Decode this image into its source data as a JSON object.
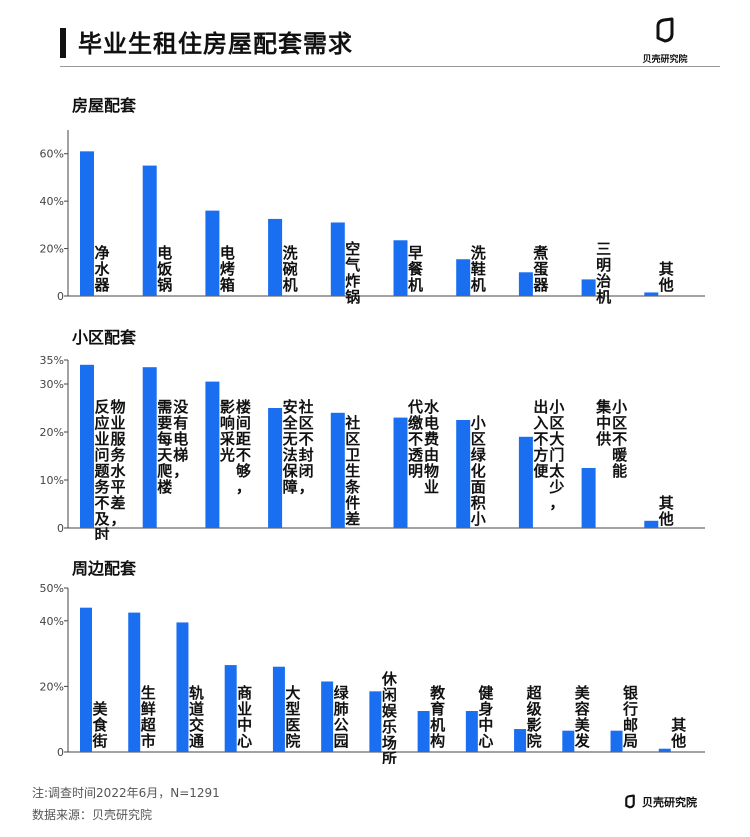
{
  "header": {
    "title": "毕业生租住房屋配套需求",
    "brand": "贝壳研究院"
  },
  "sections": [
    {
      "title": "房屋配套"
    },
    {
      "title": "小区配套"
    },
    {
      "title": "周边配套"
    }
  ],
  "footer": {
    "note": "注:调查时间2022年6月，N=1291",
    "source": "数据来源：贝壳研究院",
    "brand": "贝壳研究院"
  },
  "colors": {
    "bar": "#1a6ff0",
    "axis": "#444444",
    "text": "#111111"
  },
  "chart_data": [
    {
      "type": "bar",
      "title": "房屋配套",
      "categories": [
        "净水器",
        "电饭锅",
        "电烤箱",
        "洗碗机",
        "空气炸锅",
        "早餐机",
        "洗鞋机",
        "煮蛋器",
        "三明治机",
        "其他"
      ],
      "values": [
        61,
        55,
        36,
        32.5,
        31,
        23.5,
        15.5,
        10,
        7,
        1.5
      ],
      "yticks": [
        0,
        20,
        40,
        60
      ],
      "ytick_labels": [
        "0",
        "20%",
        "40%",
        "60%"
      ],
      "ylim": [
        0,
        70
      ],
      "label_columns": [
        [
          "净水器"
        ],
        [
          "电饭锅"
        ],
        [
          "电烤箱"
        ],
        [
          "洗碗机"
        ],
        [
          "空气炸锅"
        ],
        [
          "早餐机"
        ],
        [
          "洗鞋机"
        ],
        [
          "煮蛋器"
        ],
        [
          "三明治机"
        ],
        [
          "其他"
        ]
      ]
    },
    {
      "type": "bar",
      "title": "小区配套",
      "categories": [
        "物业服务水平差，问题不及时解决",
        "没有电梯，需要每天爬楼",
        "楼间距不够，影响采光",
        "社区不封闭，安全无法保障",
        "社区卫生条件差",
        "水电费由物业代缴不透明",
        "小区绿化面积小",
        "小区大门太少，出入不方便",
        "小区不供暖能集中",
        "其他"
      ],
      "values": [
        34,
        33.5,
        30.5,
        25,
        24,
        23,
        22.5,
        19,
        12.5,
        1.5
      ],
      "yticks": [
        0,
        10,
        20,
        30,
        35
      ],
      "ytick_labels": [
        "0",
        "10%",
        "20%",
        "30%",
        "35%"
      ],
      "ylim": [
        0,
        35
      ],
      "label_columns": [
        [
          "物业服务水平差，",
          "反应业问题务不及时解决"
        ],
        [
          "没有电梯，",
          "需要每天爬楼"
        ],
        [
          "楼间距不够，",
          "影响采光"
        ],
        [
          "社区不封闭，",
          "安全无法保障"
        ],
        [
          "社区卫生条件差"
        ],
        [
          "水电费由物业",
          "代缴不透明"
        ],
        [
          "小区绿化面积小"
        ],
        [
          "小区大门太少，",
          "出入不方便"
        ],
        [
          "小区不暖能",
          "集中供"
        ],
        [
          "其他"
        ]
      ]
    },
    {
      "type": "bar",
      "title": "周边配套",
      "categories": [
        "美食街",
        "生鲜超市",
        "轨道交通",
        "商业中心",
        "大型医院",
        "绿肺公园",
        "休闲娱乐场所",
        "教育机构",
        "健身中心",
        "超级影院",
        "美容美发",
        "银行邮局",
        "其他"
      ],
      "values": [
        44,
        42.5,
        39.5,
        26.5,
        26,
        21.5,
        18.5,
        12.5,
        12.5,
        7,
        6.5,
        6.5,
        1
      ],
      "yticks": [
        0,
        20,
        40,
        50
      ],
      "ytick_labels": [
        "0",
        "20%",
        "40%",
        "50%"
      ],
      "ylim": [
        0,
        50
      ],
      "label_columns": [
        [
          "美食街"
        ],
        [
          "生鲜超市"
        ],
        [
          "轨道交通"
        ],
        [
          "商业中心"
        ],
        [
          "大型医院"
        ],
        [
          "绿肺公园"
        ],
        [
          "休闲娱乐场所"
        ],
        [
          "教育机构"
        ],
        [
          "健身中心"
        ],
        [
          "超级影院"
        ],
        [
          "美容美发"
        ],
        [
          "银行邮局"
        ],
        [
          "其他"
        ]
      ]
    }
  ]
}
